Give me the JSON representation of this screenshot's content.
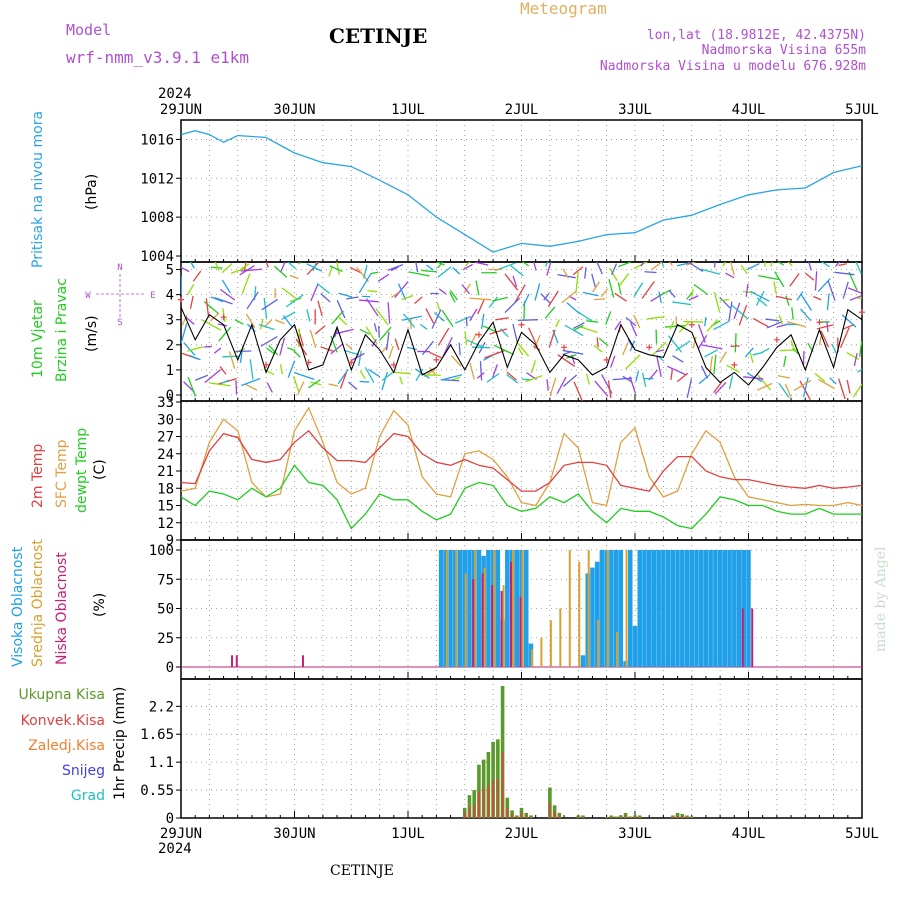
{
  "header": {
    "model_label": "Model",
    "model_name": "wrf-nmm_v3.9.1 e1km",
    "station": "CETINJE",
    "meteogram": "Meteogram",
    "lonlat": "lon,lat (18.9812E, 42.4375N)",
    "elevation": "Nadmorska Visina 655m",
    "model_elevation": "Nadmorska Visina u modelu 676.928m",
    "year": "2024",
    "watermark": "made by Angel",
    "footer": "CETINJE"
  },
  "colors": {
    "pressure": "#2aa5e6",
    "wind_speed": "#000000",
    "gust": "#e64040",
    "temp2m": "#e04040",
    "sfc_temp": "#e0a040",
    "dewpoint": "#22cc22",
    "visoka": "#20a0e8",
    "srednja": "#d8a030",
    "niska": "#c0207a",
    "ukupna": "#5a9a2a",
    "konvek": "#e04040",
    "zaledj": "#f08030",
    "snijeg": "#4040e0",
    "grad": "#20c0c0"
  },
  "time_axis": {
    "labels": [
      "29JUN",
      "30JUN",
      "1JUL",
      "2JUL",
      "3JUL",
      "4JUL",
      "5JUL"
    ],
    "year": "2024"
  },
  "chart_data": [
    {
      "type": "line",
      "panel": "pressure",
      "ylabel": [
        "Pritisak na nivou mora",
        "(hPa)"
      ],
      "ylim": [
        1004,
        1018
      ],
      "yticks": [
        "1004",
        "1008",
        "1012",
        "1016"
      ],
      "x_unit": "hours since 29JUN 00",
      "series": [
        {
          "name": "Pritisak",
          "x": [
            0,
            3,
            6,
            9,
            12,
            18,
            24,
            30,
            36,
            42,
            48,
            54,
            60,
            66,
            72,
            78,
            84,
            90,
            96,
            102,
            108,
            114,
            120,
            126,
            132,
            138,
            144
          ],
          "values": [
            1016.5,
            1016.9,
            1016.5,
            1015.7,
            1016.4,
            1016.2,
            1014.6,
            1013.6,
            1013.2,
            1011.8,
            1010.3,
            1008.0,
            1006.2,
            1004.4,
            1005.3,
            1005.0,
            1005.5,
            1006.2,
            1006.4,
            1007.7,
            1008.2,
            1009.3,
            1010.3,
            1010.8,
            1011.0,
            1012.6,
            1013.3
          ]
        }
      ]
    },
    {
      "type": "line",
      "panel": "wind",
      "ylabel": [
        "10m Vjetar",
        "Brzina i Pravac",
        "(m/s)"
      ],
      "compass": [
        "N",
        "E",
        "S",
        "W"
      ],
      "ylim": [
        0,
        5.3
      ],
      "yticks": [
        "0",
        "1",
        "2",
        "3",
        "4",
        "5"
      ],
      "series": [
        {
          "name": "Brzina",
          "x": [
            0,
            3,
            6,
            9,
            12,
            15,
            18,
            21,
            24,
            27,
            30,
            33,
            36,
            39,
            42,
            45,
            48,
            51,
            54,
            57,
            60,
            63,
            66,
            69,
            72,
            75,
            78,
            81,
            84,
            87,
            90,
            93,
            96,
            99,
            102,
            105,
            108,
            111,
            114,
            117,
            120,
            123,
            126,
            129,
            132,
            135,
            138,
            141,
            144
          ],
          "values": [
            3.5,
            2.2,
            3.2,
            2.8,
            1.4,
            2.8,
            0.9,
            2.2,
            2.8,
            1.0,
            1.2,
            2.7,
            1.0,
            2.4,
            1.8,
            0.9,
            2.6,
            0.8,
            1.1,
            2.0,
            1.0,
            2.1,
            2.9,
            1.1,
            2.5,
            2.0,
            0.9,
            1.6,
            1.4,
            0.8,
            1.1,
            2.8,
            1.8,
            1.6,
            1.5,
            2.8,
            2.5,
            1.1,
            0.5,
            0.9,
            0.4,
            1.1,
            1.9,
            2.4,
            1.0,
            2.6,
            1.1,
            3.4,
            3.0
          ]
        }
      ]
    },
    {
      "type": "line",
      "panel": "temperature",
      "ylabel": [
        "2m Temp",
        "SFC Temp",
        "dewpt Temp",
        "(C)"
      ],
      "ylim": [
        9,
        33
      ],
      "yticks": [
        "9",
        "12",
        "15",
        "18",
        "21",
        "24",
        "27",
        "30",
        "33"
      ],
      "series": [
        {
          "name": "2m Temp",
          "x": [
            0,
            3,
            6,
            9,
            12,
            15,
            18,
            21,
            24,
            27,
            30,
            33,
            36,
            39,
            42,
            45,
            48,
            51,
            54,
            57,
            60,
            63,
            66,
            69,
            72,
            75,
            78,
            81,
            84,
            87,
            90,
            93,
            96,
            99,
            102,
            105,
            108,
            111,
            114,
            117,
            120,
            123,
            126,
            129,
            132,
            135,
            138,
            141,
            144
          ],
          "values": [
            19.0,
            18.8,
            24.5,
            27.5,
            26.8,
            23.0,
            22.5,
            23.0,
            26.0,
            28.0,
            25.0,
            22.8,
            22.8,
            22.5,
            25.0,
            27.5,
            27.0,
            24.0,
            22.5,
            22.0,
            23.0,
            22.0,
            21.5,
            19.5,
            17.5,
            17.5,
            19.0,
            22.0,
            22.5,
            22.5,
            22.0,
            18.5,
            18.0,
            17.5,
            21.0,
            23.5,
            23.5,
            21.0,
            20.0,
            19.5,
            19.5,
            19.0,
            18.5,
            18.2,
            18.0,
            18.5,
            18.0,
            18.2,
            18.5
          ]
        },
        {
          "name": "SFC Temp",
          "x": [
            0,
            3,
            6,
            9,
            12,
            15,
            18,
            21,
            24,
            27,
            30,
            33,
            36,
            39,
            42,
            45,
            48,
            51,
            54,
            57,
            60,
            63,
            66,
            69,
            72,
            75,
            78,
            81,
            84,
            87,
            90,
            93,
            96,
            99,
            102,
            105,
            108,
            111,
            114,
            117,
            120,
            123,
            126,
            129,
            132,
            135,
            138,
            141,
            144
          ],
          "values": [
            17.5,
            18.0,
            26.0,
            30.0,
            28.0,
            19.0,
            16.5,
            17.0,
            28.0,
            32.0,
            26.0,
            19.0,
            17.0,
            18.0,
            27.0,
            31.5,
            29.0,
            20.0,
            17.0,
            16.5,
            24.0,
            24.5,
            23.0,
            20.0,
            15.5,
            15.0,
            19.0,
            27.5,
            25.0,
            15.5,
            15.0,
            26.0,
            28.5,
            20.0,
            16.5,
            17.5,
            24.0,
            28.0,
            26.0,
            20.0,
            16.5,
            16.0,
            15.5,
            15.0,
            15.2,
            15.0,
            15.0,
            15.5,
            15.0
          ]
        },
        {
          "name": "dewpt Temp",
          "x": [
            0,
            3,
            6,
            9,
            12,
            15,
            18,
            21,
            24,
            27,
            30,
            33,
            36,
            39,
            42,
            45,
            48,
            51,
            54,
            57,
            60,
            63,
            66,
            69,
            72,
            75,
            78,
            81,
            84,
            87,
            90,
            93,
            96,
            99,
            102,
            105,
            108,
            111,
            114,
            117,
            120,
            123,
            126,
            129,
            132,
            135,
            138,
            141,
            144
          ],
          "values": [
            16.5,
            15.0,
            17.5,
            17.0,
            16.0,
            18.0,
            16.5,
            18.0,
            22.0,
            19.0,
            18.5,
            16.0,
            11.0,
            13.5,
            17.0,
            16.0,
            16.0,
            14.0,
            12.5,
            13.5,
            18.0,
            19.0,
            18.5,
            15.0,
            14.0,
            14.5,
            16.5,
            15.5,
            17.0,
            14.0,
            12.0,
            14.5,
            14.0,
            14.0,
            13.0,
            11.5,
            11.0,
            13.5,
            16.5,
            16.0,
            15.0,
            15.0,
            14.0,
            13.5,
            13.5,
            14.5,
            13.5,
            13.5,
            13.5
          ]
        }
      ]
    },
    {
      "type": "bar",
      "panel": "clouds",
      "ylabel": [
        "Visoka Oblacnost",
        "Srednja Oblacnost",
        "Niska Oblacnost",
        "(%)"
      ],
      "ylim": [
        0,
        100
      ],
      "yticks": [
        "0",
        "25",
        "50",
        "75",
        "100"
      ],
      "series": [
        {
          "name": "Visoka Oblacnost",
          "x": [
            55,
            56,
            57,
            58,
            59,
            60,
            61,
            62,
            63,
            64,
            65,
            66,
            67,
            68,
            69,
            70,
            71,
            72,
            73,
            74,
            85,
            86,
            87,
            88,
            89,
            90,
            91,
            92,
            93,
            94,
            95,
            96,
            97,
            98,
            99,
            100,
            101,
            102,
            103,
            104,
            105,
            106,
            107,
            108,
            109,
            110,
            111,
            112,
            113,
            114,
            115,
            116,
            117,
            118,
            119,
            120
          ],
          "values": [
            100,
            100,
            100,
            100,
            100,
            100,
            100,
            100,
            100,
            95,
            100,
            100,
            100,
            40,
            100,
            100,
            100,
            100,
            100,
            20,
            10,
            80,
            85,
            90,
            100,
            100,
            100,
            100,
            100,
            5,
            100,
            35,
            100,
            100,
            100,
            100,
            100,
            100,
            100,
            100,
            100,
            100,
            100,
            100,
            100,
            100,
            100,
            100,
            100,
            100,
            100,
            100,
            100,
            100,
            100,
            100
          ]
        },
        {
          "name": "Srednja Oblacnost",
          "x": [
            56,
            58,
            60,
            62,
            64,
            66,
            68,
            70,
            72,
            74,
            76,
            78,
            80,
            82,
            84,
            86,
            88,
            90,
            92,
            94
          ],
          "values": [
            100,
            100,
            80,
            100,
            85,
            100,
            70,
            100,
            100,
            15,
            25,
            40,
            50,
            100,
            90,
            100,
            40,
            100,
            30,
            100
          ]
        },
        {
          "name": "Niska Oblacnost",
          "x": [
            11,
            12,
            26,
            62,
            64,
            66,
            68,
            70,
            72,
            119,
            121
          ],
          "values": [
            10,
            10,
            10,
            75,
            80,
            70,
            65,
            90,
            60,
            50,
            50
          ]
        }
      ]
    },
    {
      "type": "bar",
      "panel": "precipitation",
      "ylabel": [
        "Ukupna Kisa",
        "Konvek.Kisa",
        "Zaledj.Kisa",
        "Snijeg",
        "Grad",
        "1hr Precip (mm)"
      ],
      "ylim": [
        0,
        2.6
      ],
      "yticks": [
        "0",
        "0.55",
        "1.1",
        "1.65",
        "2.2"
      ],
      "series": [
        {
          "name": "Ukupna Kisa",
          "x": [
            60,
            61,
            62,
            63,
            64,
            65,
            66,
            67,
            68,
            69,
            70,
            71,
            72,
            73,
            74,
            78,
            79,
            80,
            84,
            85,
            90,
            91,
            92,
            93,
            94,
            95,
            96,
            97,
            104,
            105,
            106,
            107,
            108
          ],
          "values": [
            0.2,
            0.45,
            0.55,
            1.05,
            1.15,
            1.3,
            1.5,
            1.55,
            2.6,
            0.4,
            0.15,
            0.05,
            0.2,
            0.1,
            0.05,
            0.6,
            0.25,
            0.1,
            0.05,
            0.05,
            0.02,
            0.05,
            0.03,
            0.05,
            0.1,
            0.03,
            0.05,
            0.05,
            0.05,
            0.1,
            0.08,
            0.05,
            0.03
          ]
        }
      ]
    }
  ]
}
